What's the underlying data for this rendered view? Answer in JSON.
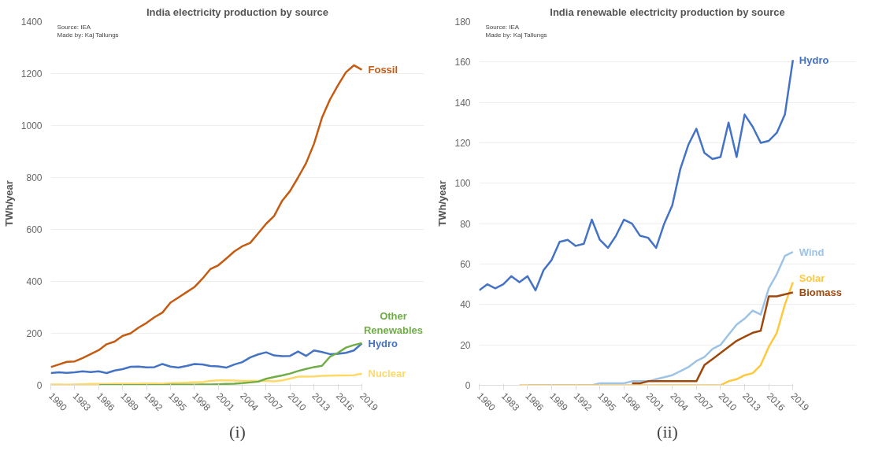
{
  "chart_data": [
    {
      "type": "line",
      "title": "India electricity production by source",
      "ylabel": "TWh/year",
      "x": [
        1980,
        1981,
        1982,
        1983,
        1984,
        1985,
        1986,
        1987,
        1988,
        1989,
        1990,
        1991,
        1992,
        1993,
        1994,
        1995,
        1996,
        1997,
        1998,
        1999,
        2000,
        2001,
        2002,
        2003,
        2004,
        2005,
        2006,
        2007,
        2008,
        2009,
        2010,
        2011,
        2012,
        2013,
        2014,
        2015,
        2016,
        2017,
        2018,
        2019
      ],
      "series": [
        {
          "name": "Fossil",
          "color": "#c55a11",
          "values": [
            70,
            80,
            90,
            92,
            105,
            120,
            135,
            158,
            168,
            190,
            200,
            222,
            240,
            262,
            280,
            318,
            338,
            358,
            378,
            410,
            447,
            462,
            488,
            515,
            535,
            548,
            585,
            622,
            652,
            710,
            748,
            800,
            855,
            930,
            1030,
            1100,
            1155,
            1205,
            1232,
            1215
          ]
        },
        {
          "name": "Hydro",
          "color": "#4472c4",
          "values": [
            47,
            50,
            48,
            50,
            54,
            51,
            54,
            47,
            57,
            62,
            71,
            72,
            69,
            70,
            82,
            72,
            68,
            74,
            82,
            80,
            74,
            73,
            68,
            80,
            89,
            107,
            119,
            127,
            115,
            112,
            113,
            130,
            113,
            134,
            128,
            120,
            121,
            125,
            134,
            161
          ]
        },
        {
          "name": "Nuclear",
          "color": "#ffd966",
          "values": [
            3,
            3,
            2,
            3,
            4,
            5,
            5,
            5,
            6,
            6,
            6,
            6,
            7,
            7,
            6,
            8,
            9,
            10,
            11,
            12,
            17,
            19,
            19,
            18,
            17,
            17,
            17,
            17,
            15,
            19,
            26,
            33,
            33,
            34,
            36,
            37,
            38,
            38,
            39,
            45
          ]
        },
        {
          "name": "Other Renewables",
          "color": "#70ad47",
          "values": [
            null,
            null,
            null,
            null,
            null,
            null,
            1,
            1,
            1,
            1,
            1,
            1,
            1,
            1,
            1,
            2,
            2,
            2,
            2,
            3,
            3,
            4,
            5,
            6,
            8,
            11,
            14,
            25,
            32,
            38,
            45,
            55,
            63,
            70,
            75,
            110,
            125,
            145,
            155,
            162
          ]
        }
      ],
      "xlim": [
        1980,
        2019
      ],
      "xticks": [
        1980,
        1983,
        1986,
        1989,
        1992,
        1995,
        1998,
        2001,
        2004,
        2007,
        2010,
        2013,
        2016,
        2019
      ],
      "ylim": [
        0,
        1400
      ],
      "yticks": [
        0,
        200,
        400,
        600,
        800,
        1000,
        1200,
        1400
      ],
      "grid": "y",
      "legend": false,
      "line_style": "solid",
      "marker": "none",
      "annotations": [
        "Source: IEA",
        "Made by: Kaj Tallungs",
        "(i)"
      ]
    },
    {
      "type": "line",
      "title": "India renewable electricity production by source",
      "ylabel": "TWh/year",
      "x": [
        1980,
        1981,
        1982,
        1983,
        1984,
        1985,
        1986,
        1987,
        1988,
        1989,
        1990,
        1991,
        1992,
        1993,
        1994,
        1995,
        1996,
        1997,
        1998,
        1999,
        2000,
        2001,
        2002,
        2003,
        2004,
        2005,
        2006,
        2007,
        2008,
        2009,
        2010,
        2011,
        2012,
        2013,
        2014,
        2015,
        2016,
        2017,
        2018,
        2019
      ],
      "series": [
        {
          "name": "Hydro",
          "color": "#4472c4",
          "values": [
            47,
            50,
            48,
            50,
            54,
            51,
            54,
            47,
            57,
            62,
            71,
            72,
            69,
            70,
            82,
            72,
            68,
            74,
            82,
            80,
            74,
            73,
            68,
            80,
            89,
            107,
            119,
            127,
            115,
            112,
            113,
            130,
            113,
            134,
            128,
            120,
            121,
            125,
            134,
            161
          ]
        },
        {
          "name": "Wind",
          "color": "#9dc3e6",
          "values": [
            null,
            null,
            null,
            null,
            null,
            null,
            0,
            0,
            0,
            0,
            0,
            0,
            0,
            0,
            0,
            1,
            1,
            1,
            1,
            2,
            2,
            2,
            3,
            4,
            5,
            7,
            9,
            12,
            14,
            18,
            20,
            25,
            30,
            33,
            37,
            35,
            48,
            55,
            64,
            66
          ]
        },
        {
          "name": "Solar",
          "color": "#ffc83d",
          "values": [
            null,
            null,
            null,
            null,
            null,
            0,
            0,
            0,
            0,
            0,
            0,
            0,
            0,
            0,
            0,
            0,
            0,
            0,
            0,
            0,
            0,
            0,
            0,
            0,
            0,
            0,
            0,
            0,
            0,
            0,
            0,
            2,
            3,
            5,
            6,
            10,
            19,
            26,
            40,
            51
          ]
        },
        {
          "name": "Biomass",
          "color": "#9e480e",
          "values": [
            null,
            null,
            null,
            null,
            null,
            null,
            null,
            null,
            null,
            null,
            null,
            null,
            null,
            null,
            null,
            null,
            null,
            null,
            null,
            1,
            1,
            2,
            2,
            2,
            2,
            2,
            2,
            2,
            10,
            13,
            16,
            19,
            22,
            24,
            26,
            27,
            44,
            44,
            45,
            46
          ]
        }
      ],
      "xlim": [
        1980,
        2019
      ],
      "xticks": [
        1980,
        1983,
        1986,
        1989,
        1992,
        1995,
        1998,
        2001,
        2004,
        2007,
        2010,
        2013,
        2016,
        2019
      ],
      "ylim": [
        0,
        180
      ],
      "yticks": [
        0,
        20,
        40,
        60,
        80,
        100,
        120,
        140,
        160,
        180
      ],
      "grid": "y",
      "legend": false,
      "line_style": "solid",
      "marker": "none",
      "annotations": [
        "Source: IEA",
        "Made by: Kaj Tallungs",
        "(ii)"
      ]
    }
  ]
}
